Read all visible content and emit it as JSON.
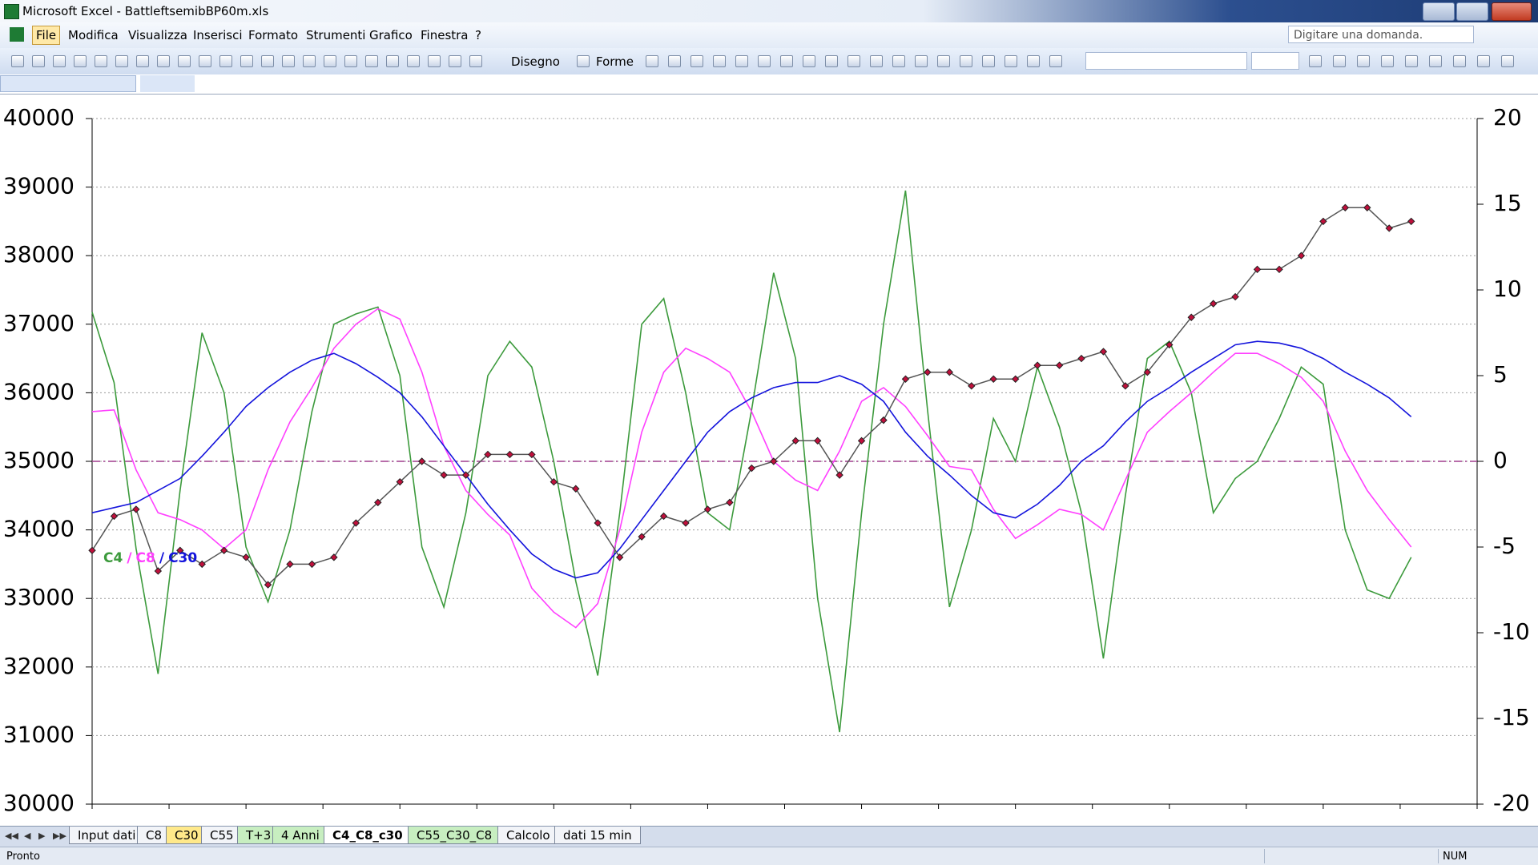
{
  "window": {
    "title": "Microsoft Excel - BattleftsemibBP60m.xls"
  },
  "menu": [
    "File",
    "Modifica",
    "Visualizza",
    "Inserisci",
    "Formato",
    "Strumenti",
    "Grafico",
    "Finestra",
    "?"
  ],
  "ask_box": "Digitare una domanda.",
  "toolbar": {
    "drawing": "Disegno",
    "shapes": "Forme"
  },
  "sheet_tabs": [
    "Input dati",
    "C8",
    "C30",
    "C55",
    "T+3",
    "4 Anni",
    "C4_C8_c30",
    "C55_C30_C8",
    "Calcolo",
    "dati 15 min"
  ],
  "status": {
    "left": "Pronto",
    "num": "NUM"
  },
  "chart_data": {
    "type": "line",
    "ylim": [
      30000,
      40000
    ],
    "yticks": [
      30000,
      31000,
      32000,
      33000,
      34000,
      35000,
      36000,
      37000,
      38000,
      39000,
      40000
    ],
    "y2lim": [
      -20,
      20
    ],
    "y2ticks": [
      -20,
      -15,
      -10,
      -5,
      0,
      5,
      10,
      15,
      20
    ],
    "grid": true,
    "legend_separator": "/",
    "series": [
      {
        "color": "#c0103c",
        "axis": "y",
        "markers": true,
        "values": [
          33700,
          34200,
          34300,
          33400,
          33700,
          33500,
          33700,
          33600,
          33200,
          33500,
          33500,
          33600,
          34100,
          34400,
          34700,
          35000,
          34800,
          34800,
          35100,
          35100,
          35100,
          34700,
          34600,
          34100,
          33600,
          33900,
          34200,
          34100,
          34300,
          34400,
          34900,
          35000,
          35300,
          35300,
          34800,
          35300,
          35600,
          36200,
          36300,
          36300,
          36100,
          36200,
          36200,
          36400,
          36400,
          36500,
          36600,
          36100,
          36300,
          36700,
          37100,
          37300,
          37400,
          37800,
          37800,
          38000,
          38500,
          38700,
          38700,
          38400,
          38500
        ]
      },
      {
        "name": "C4",
        "color": "#3c9a3c",
        "axis": "y2",
        "values": [
          8.7,
          4.6,
          -5.1,
          -12.4,
          -1.7,
          7.5,
          4,
          -5,
          -8.2,
          -4,
          2.9,
          8,
          8.6,
          9,
          5,
          -5,
          -8.5,
          -3,
          5,
          7,
          5.5,
          0,
          -7,
          -12.5,
          -3,
          8,
          9.5,
          4,
          -3,
          -4,
          3,
          11,
          6,
          -8,
          -15.8,
          -3,
          8,
          15.8,
          3,
          -8.5,
          -4,
          2.5,
          0,
          5.5,
          2,
          -3,
          -11.5,
          -2,
          6,
          7,
          4,
          -3,
          -1,
          0,
          2.5,
          5.5,
          4.5,
          -4,
          -7.5,
          -8,
          -5.6
        ]
      },
      {
        "name": "C8",
        "color": "#ff40ff",
        "axis": "y2",
        "values": [
          2.9,
          3,
          -0.5,
          -3,
          -3.4,
          -4,
          -5.1,
          -4,
          -0.5,
          2.3,
          4.3,
          6.6,
          8,
          8.9,
          8.3,
          5.2,
          0.9,
          -1.7,
          -3.1,
          -4.3,
          -7.4,
          -8.8,
          -9.7,
          -8.3,
          -4,
          1.7,
          5.2,
          6.6,
          6,
          5.2,
          2.9,
          0,
          -1.1,
          -1.7,
          0.6,
          3.5,
          4.3,
          3.2,
          1.5,
          -0.3,
          -0.5,
          -2.8,
          -4.5,
          -3.7,
          -2.8,
          -3.1,
          -4,
          -1.1,
          1.7,
          2.9,
          4,
          5.2,
          6.3,
          6.3,
          5.7,
          4.9,
          3.5,
          0.6,
          -1.7,
          -3.4,
          -5
        ]
      },
      {
        "name": "C30",
        "color": "#1414dc",
        "axis": "y2",
        "values": [
          -3,
          -2.7,
          -2.4,
          -1.7,
          -1,
          0.3,
          1.7,
          3.2,
          4.3,
          5.2,
          5.9,
          6.3,
          5.7,
          4.9,
          4,
          2.6,
          0.9,
          -0.8,
          -2.5,
          -4,
          -5.4,
          -6.3,
          -6.8,
          -6.5,
          -5.1,
          -3.4,
          -1.7,
          0,
          1.7,
          2.9,
          3.7,
          4.3,
          4.6,
          4.6,
          5,
          4.5,
          3.5,
          1.7,
          0.3,
          -0.8,
          -2,
          -3,
          -3.3,
          -2.5,
          -1.4,
          0,
          0.9,
          2.3,
          3.5,
          4.3,
          5.2,
          6,
          6.8,
          7,
          6.9,
          6.6,
          6,
          5.2,
          4.5,
          3.7,
          2.6
        ]
      }
    ]
  }
}
